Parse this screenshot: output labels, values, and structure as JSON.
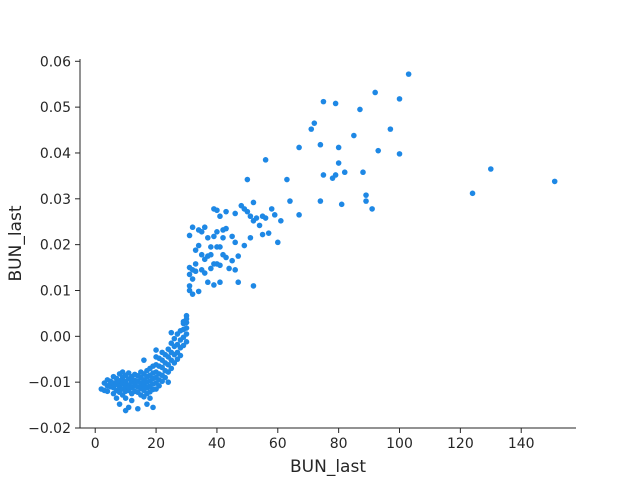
{
  "chart_data": {
    "type": "scatter",
    "title": "",
    "xlabel": "BUN_last",
    "ylabel": "BUN_last",
    "xlim": [
      -5,
      158
    ],
    "ylim": [
      -0.02,
      0.0605
    ],
    "xticks": [
      0,
      20,
      40,
      60,
      80,
      100,
      120,
      140
    ],
    "yticks": [
      -0.02,
      -0.01,
      0.0,
      0.01,
      0.02,
      0.03,
      0.04,
      0.05,
      0.06
    ],
    "ytick_labels": [
      "−0.02",
      "−0.01",
      "0.00",
      "0.01",
      "0.02",
      "0.03",
      "0.04",
      "0.05",
      "0.06"
    ],
    "grid": false,
    "point_color": "#1e88e5",
    "series": [
      {
        "points": [
          [
            2,
            -0.0115
          ],
          [
            3,
            -0.0102
          ],
          [
            3,
            -0.0118
          ],
          [
            4,
            -0.0095
          ],
          [
            4,
            -0.0108
          ],
          [
            4,
            -0.012
          ],
          [
            5,
            -0.0098
          ],
          [
            5,
            -0.011
          ],
          [
            5,
            -0.0105
          ],
          [
            6,
            -0.0088
          ],
          [
            6,
            -0.0102
          ],
          [
            6,
            -0.0125
          ],
          [
            6,
            -0.0112
          ],
          [
            7,
            -0.0092
          ],
          [
            7,
            -0.0105
          ],
          [
            7,
            -0.0118
          ],
          [
            7,
            -0.0135
          ],
          [
            7,
            -0.01
          ],
          [
            8,
            -0.0082
          ],
          [
            8,
            -0.0097
          ],
          [
            8,
            -0.0108
          ],
          [
            8,
            -0.0122
          ],
          [
            8,
            -0.0148
          ],
          [
            8,
            -0.0113
          ],
          [
            9,
            -0.0078
          ],
          [
            9,
            -0.009
          ],
          [
            9,
            -0.0103
          ],
          [
            9,
            -0.0115
          ],
          [
            9,
            -0.0128
          ],
          [
            9,
            -0.0095
          ],
          [
            10,
            -0.0085
          ],
          [
            10,
            -0.0098
          ],
          [
            10,
            -0.011
          ],
          [
            10,
            -0.012
          ],
          [
            10,
            -0.0135
          ],
          [
            10,
            -0.0162
          ],
          [
            10,
            -0.0105
          ],
          [
            11,
            -0.008
          ],
          [
            11,
            -0.0093
          ],
          [
            11,
            -0.0106
          ],
          [
            11,
            -0.0118
          ],
          [
            11,
            -0.0155
          ],
          [
            11,
            -0.0112
          ],
          [
            12,
            -0.0088
          ],
          [
            12,
            -0.01
          ],
          [
            12,
            -0.0112
          ],
          [
            12,
            -0.0125
          ],
          [
            12,
            -0.014
          ],
          [
            12,
            -0.0095
          ],
          [
            13,
            -0.0083
          ],
          [
            13,
            -0.0096
          ],
          [
            13,
            -0.0108
          ],
          [
            13,
            -0.012
          ],
          [
            13,
            -0.0103
          ],
          [
            14,
            -0.0086
          ],
          [
            14,
            -0.0098
          ],
          [
            14,
            -0.011
          ],
          [
            14,
            -0.0122
          ],
          [
            14,
            -0.0158
          ],
          [
            15,
            -0.0078
          ],
          [
            15,
            -0.009
          ],
          [
            15,
            -0.0102
          ],
          [
            15,
            -0.0114
          ],
          [
            15,
            -0.0128
          ],
          [
            15,
            -0.0108
          ],
          [
            16,
            -0.0052
          ],
          [
            16,
            -0.0082
          ],
          [
            16,
            -0.0095
          ],
          [
            16,
            -0.0107
          ],
          [
            16,
            -0.0118
          ],
          [
            16,
            -0.0132
          ],
          [
            16,
            -0.01
          ],
          [
            17,
            -0.0075
          ],
          [
            17,
            -0.0088
          ],
          [
            17,
            -0.01
          ],
          [
            17,
            -0.0112
          ],
          [
            17,
            -0.0125
          ],
          [
            17,
            -0.0148
          ],
          [
            18,
            -0.007
          ],
          [
            18,
            -0.0085
          ],
          [
            18,
            -0.0097
          ],
          [
            18,
            -0.0109
          ],
          [
            18,
            -0.0121
          ],
          [
            18,
            -0.0135
          ],
          [
            19,
            -0.0065
          ],
          [
            19,
            -0.008
          ],
          [
            19,
            -0.0092
          ],
          [
            19,
            -0.0104
          ],
          [
            19,
            -0.0116
          ],
          [
            19,
            -0.0155
          ],
          [
            20,
            -0.0045
          ],
          [
            20,
            -0.0062
          ],
          [
            20,
            -0.0078
          ],
          [
            20,
            -0.009
          ],
          [
            20,
            -0.0102
          ],
          [
            20,
            -0.0115
          ],
          [
            20,
            -0.003
          ],
          [
            21,
            -0.0048
          ],
          [
            21,
            -0.0065
          ],
          [
            21,
            -0.0082
          ],
          [
            21,
            -0.0095
          ],
          [
            21,
            -0.0108
          ],
          [
            22,
            -0.0035
          ],
          [
            22,
            -0.0052
          ],
          [
            22,
            -0.0068
          ],
          [
            22,
            -0.0085
          ],
          [
            22,
            -0.0098
          ],
          [
            23,
            -0.004
          ],
          [
            23,
            -0.0058
          ],
          [
            23,
            -0.0075
          ],
          [
            23,
            -0.009
          ],
          [
            24,
            -0.0028
          ],
          [
            24,
            -0.0045
          ],
          [
            24,
            -0.0062
          ],
          [
            24,
            -0.0078
          ],
          [
            24,
            -0.01
          ],
          [
            25,
            0.0008
          ],
          [
            25,
            -0.0015
          ],
          [
            25,
            -0.0035
          ],
          [
            25,
            -0.0052
          ],
          [
            25,
            -0.007
          ],
          [
            26,
            -0.0005
          ],
          [
            26,
            -0.0022
          ],
          [
            26,
            -0.004
          ],
          [
            26,
            -0.0058
          ],
          [
            27,
            0.0005
          ],
          [
            27,
            -0.0018
          ],
          [
            27,
            -0.0035
          ],
          [
            27,
            -0.005
          ],
          [
            28,
            0.0012
          ],
          [
            28,
            -0.0008
          ],
          [
            28,
            -0.0025
          ],
          [
            28,
            -0.0042
          ],
          [
            29,
            0.0028
          ],
          [
            29,
            0.0015
          ],
          [
            29,
            -0.0002
          ],
          [
            29,
            -0.002
          ],
          [
            29,
            0.0032
          ],
          [
            30,
            0.0045
          ],
          [
            30,
            0.003
          ],
          [
            30,
            0.0018
          ],
          [
            30,
            0.0005
          ],
          [
            30,
            -0.0012
          ],
          [
            30,
            0.0038
          ],
          [
            31,
            0.022
          ],
          [
            31,
            0.015
          ],
          [
            31,
            0.0135
          ],
          [
            31,
            0.011
          ],
          [
            31,
            0.01
          ],
          [
            32,
            0.0238
          ],
          [
            32,
            0.0145
          ],
          [
            32,
            0.0125
          ],
          [
            32,
            0.0092
          ],
          [
            33,
            0.0188
          ],
          [
            33,
            0.0158
          ],
          [
            33,
            0.0142
          ],
          [
            34,
            0.0232
          ],
          [
            34,
            0.0198
          ],
          [
            34,
            0.0098
          ],
          [
            35,
            0.0228
          ],
          [
            35,
            0.0178
          ],
          [
            35,
            0.0145
          ],
          [
            36,
            0.0238
          ],
          [
            36,
            0.0168
          ],
          [
            36,
            0.0138
          ],
          [
            37,
            0.0215
          ],
          [
            37,
            0.0175
          ],
          [
            37,
            0.0118
          ],
          [
            38,
            0.0195
          ],
          [
            38,
            0.0178
          ],
          [
            38,
            0.0148
          ],
          [
            39,
            0.0278
          ],
          [
            39,
            0.0218
          ],
          [
            39,
            0.0158
          ],
          [
            39,
            0.0112
          ],
          [
            40,
            0.0275
          ],
          [
            40,
            0.0228
          ],
          [
            40,
            0.0195
          ],
          [
            40,
            0.0158
          ],
          [
            41,
            0.0262
          ],
          [
            41,
            0.0195
          ],
          [
            41,
            0.0155
          ],
          [
            41,
            0.0118
          ],
          [
            42,
            0.0232
          ],
          [
            42,
            0.0215
          ],
          [
            42,
            0.0178
          ],
          [
            43,
            0.0272
          ],
          [
            43,
            0.0235
          ],
          [
            43,
            0.0172
          ],
          [
            44,
            0.0148
          ],
          [
            45,
            0.0218
          ],
          [
            45,
            0.0165
          ],
          [
            46,
            0.0268
          ],
          [
            46,
            0.0205
          ],
          [
            46,
            0.0145
          ],
          [
            47,
            0.0175
          ],
          [
            47,
            0.0118
          ],
          [
            48,
            0.0285
          ],
          [
            49,
            0.0278
          ],
          [
            49,
            0.0198
          ],
          [
            50,
            0.0342
          ],
          [
            50,
            0.0272
          ],
          [
            51,
            0.0262
          ],
          [
            51,
            0.0215
          ],
          [
            52,
            0.0292
          ],
          [
            52,
            0.0252
          ],
          [
            52,
            0.011
          ],
          [
            53,
            0.0258
          ],
          [
            54,
            0.0242
          ],
          [
            55,
            0.0262
          ],
          [
            55,
            0.0222
          ],
          [
            56,
            0.0385
          ],
          [
            56,
            0.0258
          ],
          [
            57,
            0.0225
          ],
          [
            58,
            0.0278
          ],
          [
            59,
            0.0265
          ],
          [
            60,
            0.0205
          ],
          [
            61,
            0.0252
          ],
          [
            63,
            0.0342
          ],
          [
            64,
            0.0295
          ],
          [
            67,
            0.0412
          ],
          [
            67,
            0.0265
          ],
          [
            71,
            0.0452
          ],
          [
            72,
            0.0465
          ],
          [
            74,
            0.0418
          ],
          [
            74,
            0.0295
          ],
          [
            75,
            0.0512
          ],
          [
            75,
            0.0352
          ],
          [
            78,
            0.0345
          ],
          [
            79,
            0.0508
          ],
          [
            79,
            0.0352
          ],
          [
            80,
            0.0412
          ],
          [
            80,
            0.0378
          ],
          [
            81,
            0.0288
          ],
          [
            82,
            0.0358
          ],
          [
            85,
            0.0438
          ],
          [
            87,
            0.0495
          ],
          [
            88,
            0.0358
          ],
          [
            89,
            0.0308
          ],
          [
            89,
            0.0295
          ],
          [
            91,
            0.0278
          ],
          [
            92,
            0.0532
          ],
          [
            93,
            0.0405
          ],
          [
            97,
            0.0452
          ],
          [
            100,
            0.0518
          ],
          [
            100,
            0.0398
          ],
          [
            103,
            0.0572
          ],
          [
            124,
            0.0312
          ],
          [
            130,
            0.0365
          ],
          [
            151,
            0.0338
          ]
        ]
      }
    ]
  }
}
